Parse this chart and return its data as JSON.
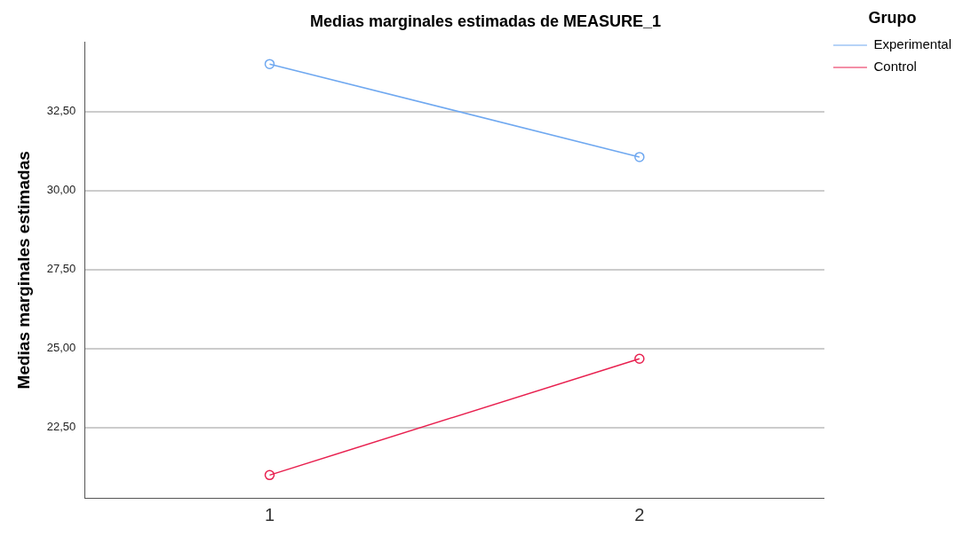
{
  "chart_data": {
    "type": "line",
    "title": "Medias marginales estimadas de MEASURE_1",
    "ylabel": "Medias marginales estimadas",
    "categories": [
      "1",
      "2"
    ],
    "series": [
      {
        "name": "Experimental",
        "color": "#6fa8f0",
        "values": [
          34.0,
          31.06
        ]
      },
      {
        "name": "Control",
        "color": "#e8204f",
        "values": [
          21.0,
          24.68
        ]
      }
    ],
    "ylim": [
      20.28,
      34.69
    ],
    "yticks": [
      {
        "value": 22.5,
        "label": "22,50"
      },
      {
        "value": 25,
        "label": "25,00"
      },
      {
        "value": 27.5,
        "label": "27,50"
      },
      {
        "value": 30,
        "label": "30,00"
      },
      {
        "value": 32.5,
        "label": "32,50"
      }
    ],
    "grid": "y",
    "legend": "top right",
    "legend_title": "Grupo",
    "marker": "circle",
    "line_style": "solid"
  }
}
